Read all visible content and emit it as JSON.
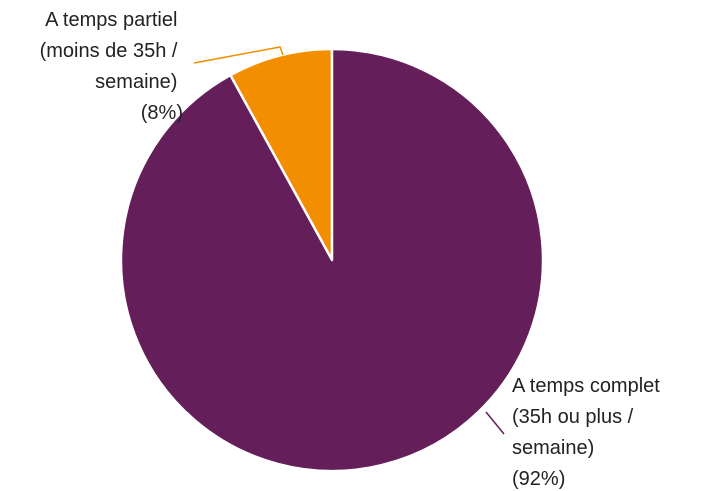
{
  "chart_data": {
    "type": "pie",
    "title": "",
    "slices": [
      {
        "label_lines": [
          "A temps partiel",
          "(moins de 35h /",
          "semaine)",
          "(8%)"
        ],
        "value": 8,
        "color": "#f28e00"
      },
      {
        "label_lines": [
          "A temps complet",
          "(35h ou plus /",
          "semaine)",
          "(92%)"
        ],
        "value": 92,
        "color": "#641e5a"
      }
    ],
    "legend": "none",
    "slice_border_color": "#ffffff"
  }
}
